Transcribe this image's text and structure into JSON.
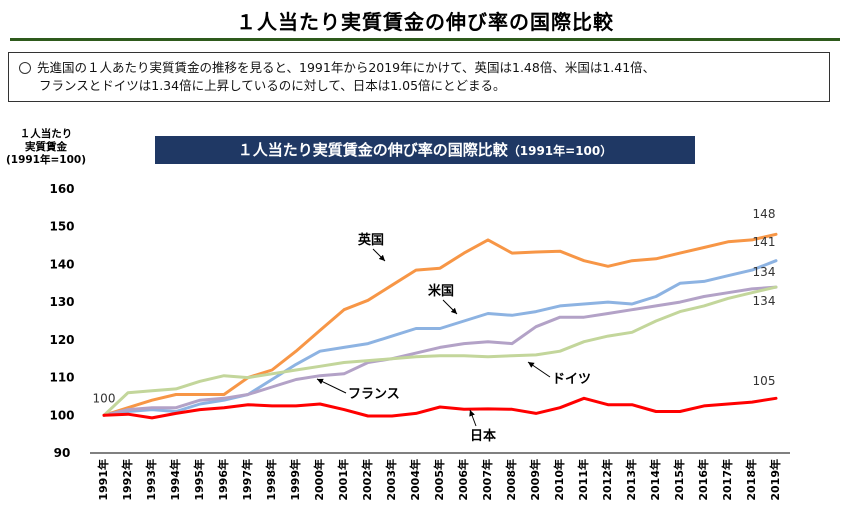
{
  "page": {
    "title": "１人当たり実質賃金の伸び率の国際比較",
    "summary_line1": "先進国の１人あたり実質賃金の推移を見ると、1991年から2019年にかけて、英国は1.48倍、米国は1.41倍、",
    "summary_line2": "フランスとドイツは1.34倍に上昇しているのに対して、日本は1.05倍にとどまる。"
  },
  "chart_data": {
    "type": "line",
    "title": "１人当たり実質賃金の伸び率の国際比較",
    "subtitle": "（1991年=100）",
    "ylabel_lines": [
      "１人当たり",
      "実質賃金",
      "(1991年=100)"
    ],
    "xlabel": "",
    "ylim": [
      90,
      160
    ],
    "yticks": [
      90,
      100,
      110,
      120,
      130,
      140,
      150,
      160
    ],
    "grid": false,
    "categories": [
      "1991年",
      "1992年",
      "1993年",
      "1994年",
      "1995年",
      "1996年",
      "1997年",
      "1998年",
      "1999年",
      "2000年",
      "2001年",
      "2002年",
      "2003年",
      "2004年",
      "2005年",
      "2006年",
      "2007年",
      "2008年",
      "2009年",
      "2010年",
      "2011年",
      "2012年",
      "2013年",
      "2014年",
      "2015年",
      "2016年",
      "2017年",
      "2018年",
      "2019年"
    ],
    "series": [
      {
        "name": "英国",
        "color": "#f79646",
        "values": [
          100,
          102,
          104,
          105.5,
          105.5,
          105.5,
          110,
          112,
          117,
          122.5,
          128,
          130.5,
          134.5,
          138.5,
          139,
          143,
          146.5,
          143,
          143.3,
          143.5,
          141,
          139.5,
          141,
          141.5,
          143,
          144.5,
          146,
          146.5,
          148
        ]
      },
      {
        "name": "米国",
        "color": "#8db3e2",
        "values": [
          100,
          101,
          101.5,
          101,
          103,
          104,
          105.5,
          109.5,
          113.5,
          117,
          118,
          119,
          121,
          123,
          123,
          125,
          127,
          126.5,
          127.5,
          129,
          129.5,
          130,
          129.5,
          131.5,
          135,
          135.5,
          137,
          138.5,
          141
        ]
      },
      {
        "name": "フランス",
        "color": "#b3a2c7",
        "values": [
          100,
          101.5,
          102,
          102,
          104,
          104.5,
          105.5,
          107.5,
          109.5,
          110.5,
          111,
          114,
          115,
          116.5,
          118,
          119,
          119.5,
          119,
          123.5,
          126,
          126,
          127,
          128,
          129,
          130,
          131.5,
          132.5,
          133.5,
          134
        ]
      },
      {
        "name": "ドイツ",
        "color": "#c3d69b",
        "values": [
          100,
          106,
          106.5,
          107,
          109,
          110.5,
          110,
          111,
          112,
          113,
          114,
          114.5,
          115,
          115.5,
          115.8,
          115.8,
          115.5,
          115.8,
          116,
          117,
          119.5,
          121,
          122,
          125,
          127.5,
          129,
          131,
          132.5,
          134
        ]
      },
      {
        "name": "日本",
        "color": "#ff0000",
        "values": [
          100,
          100.3,
          99.3,
          100.5,
          101.5,
          102,
          102.8,
          102.5,
          102.5,
          103,
          101.5,
          99.8,
          99.8,
          100.5,
          102.2,
          101.6,
          101.7,
          101.6,
          100.5,
          102,
          104.5,
          102.8,
          102.8,
          101,
          101,
          102.5,
          103,
          103.5,
          104.5
        ]
      }
    ],
    "series_labels": [
      {
        "series": "英国",
        "text": "英国"
      },
      {
        "series": "米国",
        "text": "米国"
      },
      {
        "series": "フランス",
        "text": "フランス"
      },
      {
        "series": "ドイツ",
        "text": "ドイツ"
      },
      {
        "series": "日本",
        "text": "日本"
      }
    ],
    "end_labels": [
      "148",
      "141",
      "134",
      "134",
      "105"
    ],
    "start_label": "100"
  }
}
